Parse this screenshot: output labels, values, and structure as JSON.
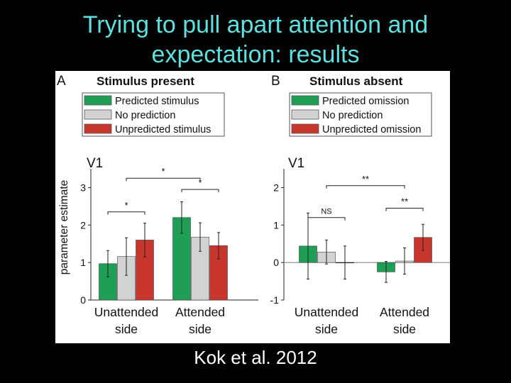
{
  "slide": {
    "title_line1": "Trying to pull apart attention and",
    "title_line2": "expectation: results",
    "citation": "Kok et al. 2012"
  },
  "colors": {
    "title": "#5fe0e0",
    "green": "#1f9e55",
    "gray": "#d2d2d2",
    "red": "#c8372d"
  },
  "chart_data": [
    {
      "panel": "A",
      "type": "bar",
      "title": "Stimulus present",
      "region": "V1",
      "ylabel": "parameter estimate",
      "xlabel": "",
      "categories": [
        "Unattended side",
        "Attended side"
      ],
      "category_lines": [
        [
          "Unattended",
          "side"
        ],
        [
          "Attended",
          "side"
        ]
      ],
      "ylim": [
        0,
        3.5
      ],
      "yticks": [
        0,
        1,
        2,
        3
      ],
      "series": [
        {
          "name": "Predicted stimulus",
          "color_key": "green",
          "values": [
            0.97,
            2.2
          ],
          "errors": [
            0.35,
            0.42
          ]
        },
        {
          "name": "No prediction",
          "color_key": "gray",
          "values": [
            1.16,
            1.68
          ],
          "errors": [
            0.5,
            0.38
          ]
        },
        {
          "name": "Unpredicted stimulus",
          "color_key": "red",
          "values": [
            1.6,
            1.45
          ],
          "errors": [
            0.45,
            0.35
          ]
        }
      ],
      "significance": [
        {
          "label": "*",
          "from_category": 0,
          "from_series": 0,
          "to_category": 0,
          "to_series": 2,
          "y": 2.35
        },
        {
          "label": "*",
          "from_category": 1,
          "from_series": 0,
          "to_category": 1,
          "to_series": 2,
          "y": 2.95
        },
        {
          "label": "*",
          "from_category": 0,
          "from_series": 1,
          "to_category": 1,
          "to_series": 1,
          "y": 3.25
        }
      ]
    },
    {
      "panel": "B",
      "type": "bar",
      "title": "Stimulus absent",
      "region": "V1",
      "ylabel": "",
      "xlabel": "",
      "categories": [
        "Unattended side",
        "Attended side"
      ],
      "category_lines": [
        [
          "Unattended",
          "side"
        ],
        [
          "Attended",
          "side"
        ]
      ],
      "ylim": [
        -1,
        2.5
      ],
      "yticks": [
        -1,
        0,
        1,
        2
      ],
      "series": [
        {
          "name": "Predicted omission",
          "color_key": "green",
          "values": [
            0.44,
            -0.25
          ],
          "errors": [
            0.88,
            0.28
          ]
        },
        {
          "name": "No prediction",
          "color_key": "gray",
          "values": [
            0.28,
            0.04
          ],
          "errors": [
            0.32,
            0.35
          ]
        },
        {
          "name": "Unpredicted omission",
          "color_key": "red",
          "values": [
            0.0,
            0.67
          ],
          "errors": [
            0.44,
            0.35
          ]
        }
      ],
      "significance": [
        {
          "label": "NS",
          "from_category": 0,
          "from_series": 0,
          "to_category": 0,
          "to_series": 2,
          "y": 1.2
        },
        {
          "label": "**",
          "from_category": 1,
          "from_series": 0,
          "to_category": 1,
          "to_series": 2,
          "y": 1.45
        },
        {
          "label": "**",
          "from_category": 0,
          "from_series": 1,
          "to_category": 1,
          "to_series": 1,
          "y": 2.05
        }
      ]
    }
  ]
}
